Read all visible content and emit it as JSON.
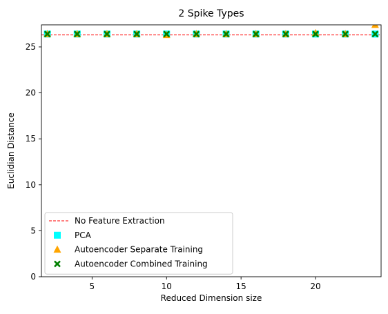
{
  "chart_data": {
    "type": "scatter",
    "title": "2 Spike Types",
    "xlabel": "Reduced Dimension size",
    "ylabel": "Euclidian Distance",
    "xlim": [
      1.6,
      24.4
    ],
    "ylim": [
      0,
      27.4
    ],
    "xticks": [
      5,
      10,
      15,
      20
    ],
    "yticks": [
      0,
      5,
      10,
      15,
      20,
      25
    ],
    "grid": false,
    "legend_position": "lower-left",
    "baseline": {
      "name": "No Feature Extraction",
      "value": 26.3,
      "color": "#ff0000",
      "style": "dashed"
    },
    "series": [
      {
        "name": "PCA",
        "marker": "square",
        "color": "#00ffff",
        "x": [
          2,
          4,
          6,
          8,
          10,
          12,
          14,
          16,
          18,
          20,
          22,
          24
        ],
        "y": [
          26.4,
          26.4,
          26.4,
          26.4,
          26.4,
          26.4,
          26.4,
          26.4,
          26.4,
          26.4,
          26.4,
          26.4
        ]
      },
      {
        "name": "Autoencoder Separate Training",
        "marker": "triangle",
        "color": "#ffa500",
        "x": [
          2,
          4,
          6,
          8,
          10,
          12,
          14,
          16,
          18,
          20,
          22,
          24
        ],
        "y": [
          26.4,
          26.4,
          26.4,
          26.4,
          26.3,
          26.4,
          26.4,
          26.4,
          26.4,
          26.5,
          26.4,
          27.4
        ]
      },
      {
        "name": "Autoencoder Combined Training",
        "marker": "x",
        "color": "#008000",
        "x": [
          2,
          4,
          6,
          8,
          10,
          12,
          14,
          16,
          18,
          20,
          22,
          24
        ],
        "y": [
          26.4,
          26.4,
          26.4,
          26.4,
          26.4,
          26.4,
          26.4,
          26.4,
          26.4,
          26.4,
          26.4,
          26.4
        ]
      }
    ]
  }
}
